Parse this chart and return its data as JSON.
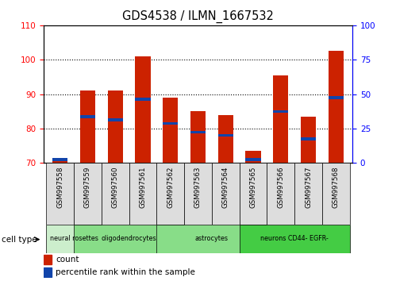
{
  "title": "GDS4538 / ILMN_1667532",
  "samples": [
    "GSM997558",
    "GSM997559",
    "GSM997560",
    "GSM997561",
    "GSM997562",
    "GSM997563",
    "GSM997564",
    "GSM997565",
    "GSM997566",
    "GSM997567",
    "GSM997568"
  ],
  "count_values": [
    71.5,
    91.0,
    91.0,
    101.0,
    89.0,
    85.0,
    84.0,
    73.5,
    95.5,
    83.5,
    102.5
  ],
  "percentile_values": [
    71.0,
    83.5,
    82.5,
    88.5,
    81.5,
    79.0,
    78.0,
    71.0,
    85.0,
    77.0,
    89.0
  ],
  "ylim_left": [
    70,
    110
  ],
  "ylim_right": [
    0,
    100
  ],
  "yticks_left": [
    70,
    80,
    90,
    100,
    110
  ],
  "yticks_right": [
    0,
    25,
    50,
    75,
    100
  ],
  "bar_color": "#CC2200",
  "percentile_color": "#1144AA",
  "bar_width": 0.55,
  "groups": [
    {
      "label": "neural rosettes",
      "start": 0,
      "end": 1,
      "color": "#cceecc"
    },
    {
      "label": "oligodendrocytes",
      "start": 1,
      "end": 4,
      "color": "#88dd88"
    },
    {
      "label": "astrocytes",
      "start": 4,
      "end": 7,
      "color": "#88dd88"
    },
    {
      "label": "neurons CD44- EGFR-",
      "start": 7,
      "end": 10,
      "color": "#44cc44"
    }
  ],
  "legend_count_label": "count",
  "legend_percentile_label": "percentile rank within the sample",
  "cell_type_label": "cell type",
  "sample_box_color": "#dddddd",
  "grid_lines": [
    80,
    90,
    100
  ]
}
